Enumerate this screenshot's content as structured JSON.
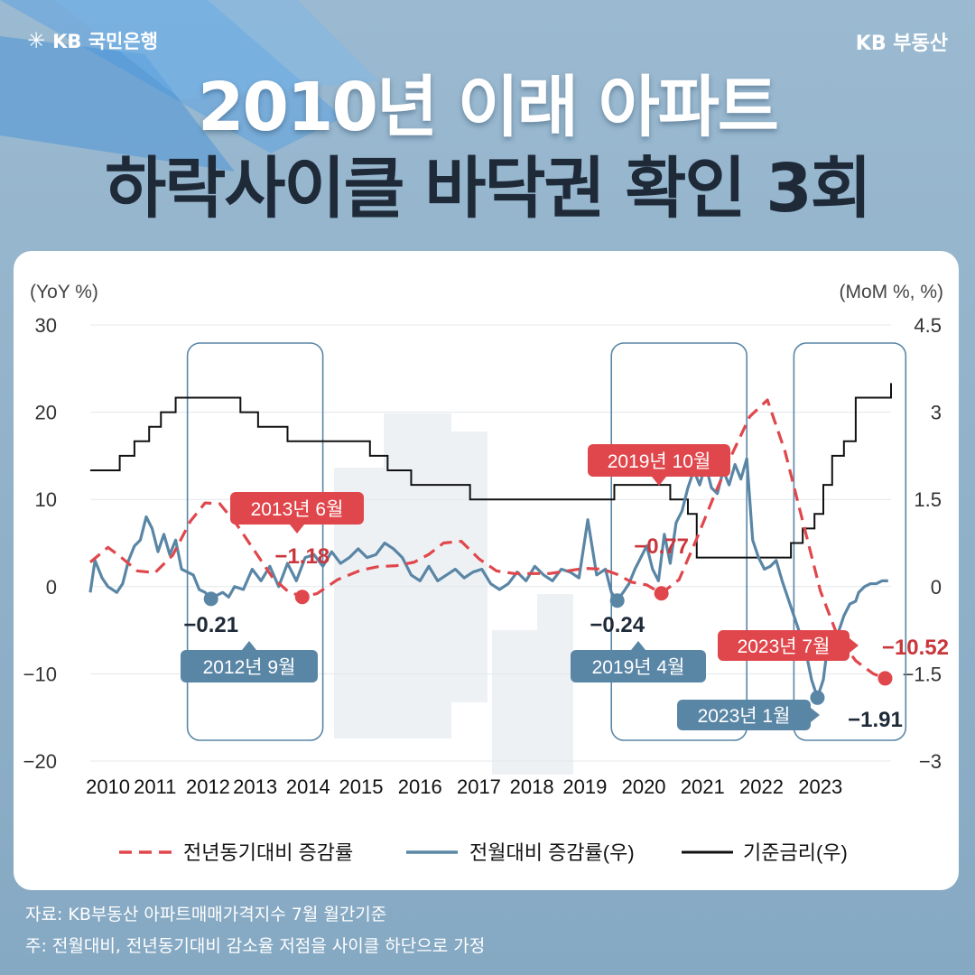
{
  "header": {
    "bank_logo_text": "KB 국민은행",
    "brand_right": "KB 부동산",
    "title_line1": "2010년 이래 아파트",
    "title_line2": "하락사이클 바닥권 확인 3회"
  },
  "footer": {
    "source": "자료: KB부동산 아파트매매가격지수 7월 월간기준",
    "note": "주: 전월대비, 전년동기대비 감소율 저점을 사이클 하단으로 가정"
  },
  "colors": {
    "yoy": "#e0474c",
    "mom": "#5a86a6",
    "rate": "#111111",
    "highlight_box": "#5a86a6"
  },
  "chart_data": {
    "type": "line",
    "left_axis_label": "(YoY %)",
    "right_axis_label": "(MoM %, %)",
    "ylim_left": [
      -20,
      30
    ],
    "ylim_right": [
      -3,
      4.5
    ],
    "yticks_left": [
      "30",
      "20",
      "10",
      "0",
      "−10",
      "−20"
    ],
    "yticks_right": [
      "4.5",
      "3",
      "1.5",
      "0",
      "−1.5",
      "−3"
    ],
    "yticks_left_values": [
      30,
      20,
      10,
      0,
      -10,
      -20
    ],
    "yticks_right_values": [
      4.5,
      3,
      1.5,
      0,
      -1.5,
      -3
    ],
    "xlim": [
      2010.0,
      2023.6
    ],
    "xtick_labels": [
      "2010",
      "2011",
      "2012",
      "2013",
      "2014",
      "2015",
      "2016",
      "2017",
      "2018",
      "2019",
      "2020",
      "2021",
      "2022",
      "2023"
    ],
    "xtick_values": [
      2010.3,
      2011.1,
      2012.0,
      2012.8,
      2013.7,
      2014.6,
      2015.6,
      2016.6,
      2017.5,
      2018.4,
      2019.4,
      2020.4,
      2021.4,
      2022.4
    ],
    "grid": true,
    "legend_position": "bottom",
    "legend": [
      "전년동기대비 증감률",
      "전월대비 증감률(우)",
      "기준금리(우)"
    ],
    "highlight_periods": [
      [
        2011.65,
        2013.95
      ],
      [
        2018.85,
        2021.15
      ],
      [
        2021.95,
        2023.85
      ]
    ],
    "series": [
      {
        "name": "전년동기대비 증감률",
        "axis": "left",
        "style": "dashed",
        "x": [
          2010.0,
          2010.3,
          2010.5,
          2010.8,
          2011.1,
          2011.4,
          2011.7,
          2011.95,
          2012.2,
          2012.5,
          2012.8,
          2013.1,
          2013.35,
          2013.6,
          2013.85,
          2014.2,
          2014.6,
          2014.9,
          2015.2,
          2015.5,
          2015.75,
          2016.0,
          2016.3,
          2016.6,
          2016.9,
          2017.2,
          2017.5,
          2017.8,
          2018.1,
          2018.4,
          2018.7,
          2018.95,
          2019.2,
          2019.45,
          2019.7,
          2020.0,
          2020.3,
          2020.6,
          2020.9,
          2021.2,
          2021.5,
          2021.8,
          2022.1,
          2022.4,
          2022.7,
          2023.0,
          2023.3,
          2023.5
        ],
        "y": [
          2.8,
          4.5,
          3.5,
          1.8,
          1.6,
          3.6,
          7.5,
          9.6,
          9.5,
          7,
          4,
          1,
          -0.5,
          -1.18,
          -0.8,
          0.8,
          1.9,
          2.3,
          2.4,
          2.8,
          3.7,
          5,
          5.2,
          3.2,
          1.8,
          1.5,
          1.5,
          1.5,
          1.8,
          2.1,
          2,
          1.4,
          0.5,
          0.2,
          -0.77,
          0.8,
          5.5,
          10.5,
          15.2,
          19.5,
          21.4,
          15.5,
          7.5,
          -0.5,
          -5.8,
          -8.5,
          -10,
          -10.52
        ]
      },
      {
        "name": "전월대비 증감률(우)",
        "axis": "right",
        "style": "solid",
        "x": [
          2010.0,
          2010.08,
          2010.2,
          2010.3,
          2010.45,
          2010.55,
          2010.65,
          2010.75,
          2010.85,
          2010.95,
          2011.05,
          2011.15,
          2011.25,
          2011.35,
          2011.45,
          2011.55,
          2011.65,
          2011.75,
          2011.85,
          2011.95,
          2012.05,
          2012.15,
          2012.25,
          2012.35,
          2012.45,
          2012.6,
          2012.75,
          2012.9,
          2013.05,
          2013.2,
          2013.35,
          2013.5,
          2013.65,
          2013.8,
          2013.95,
          2014.1,
          2014.25,
          2014.4,
          2014.55,
          2014.7,
          2014.85,
          2015.0,
          2015.15,
          2015.3,
          2015.45,
          2015.6,
          2015.75,
          2015.9,
          2016.05,
          2016.2,
          2016.35,
          2016.5,
          2016.65,
          2016.8,
          2016.95,
          2017.1,
          2017.25,
          2017.4,
          2017.55,
          2017.7,
          2017.85,
          2018.0,
          2018.15,
          2018.3,
          2018.45,
          2018.6,
          2018.75,
          2018.85,
          2018.95,
          2019.05,
          2019.15,
          2019.25,
          2019.35,
          2019.45,
          2019.55,
          2019.65,
          2019.75,
          2019.85,
          2019.95,
          2020.05,
          2020.15,
          2020.25,
          2020.35,
          2020.45,
          2020.55,
          2020.65,
          2020.75,
          2020.85,
          2020.95,
          2021.05,
          2021.15,
          2021.25,
          2021.35,
          2021.45,
          2021.55,
          2021.65,
          2021.75,
          2021.85,
          2021.95,
          2022.05,
          2022.15,
          2022.25,
          2022.35,
          2022.45,
          2022.5,
          2022.6,
          2022.7,
          2022.8,
          2022.9,
          2023.0,
          2023.05,
          2023.15,
          2023.25,
          2023.35,
          2023.45,
          2023.55
        ],
        "y": [
          -0.1,
          0.45,
          0.15,
          0.0,
          -0.1,
          0.05,
          0.45,
          0.7,
          0.8,
          1.2,
          1.0,
          0.6,
          0.9,
          0.55,
          0.8,
          0.3,
          0.25,
          0.2,
          -0.05,
          -0.1,
          -0.21,
          -0.15,
          -0.1,
          -0.18,
          0.0,
          -0.05,
          0.3,
          0.1,
          0.35,
          0.0,
          0.4,
          0.1,
          0.5,
          0.55,
          0.35,
          0.6,
          0.4,
          0.5,
          0.65,
          0.5,
          0.55,
          0.75,
          0.65,
          0.5,
          0.2,
          0.1,
          0.35,
          0.1,
          0.2,
          0.3,
          0.15,
          0.25,
          0.3,
          0.05,
          -0.05,
          0.05,
          0.25,
          0.1,
          0.35,
          0.2,
          0.1,
          0.3,
          0.25,
          0.15,
          1.15,
          0.2,
          0.3,
          -0.1,
          -0.24,
          -0.1,
          0.05,
          0.3,
          0.5,
          0.7,
          0.3,
          0.1,
          0.9,
          0.4,
          1.1,
          1.3,
          1.7,
          2.0,
          1.75,
          2.1,
          1.7,
          1.6,
          2.0,
          1.75,
          2.1,
          1.85,
          2.2,
          0.8,
          0.5,
          0.3,
          0.35,
          0.45,
          0.1,
          -0.2,
          -0.5,
          -0.8,
          -1.1,
          -1.6,
          -1.91,
          -1.6,
          -1.2,
          -1.0,
          -0.8,
          -0.5,
          -0.3,
          -0.25,
          -0.1,
          0.0,
          0.05,
          0.05,
          0.1,
          0.1
        ]
      },
      {
        "name": "기준금리(우)",
        "axis": "right",
        "style": "step",
        "x": [
          2010.0,
          2010.5,
          2010.75,
          2011.0,
          2011.2,
          2011.45,
          2011.6,
          2011.85,
          2012.35,
          2012.55,
          2012.85,
          2013.35,
          2014.55,
          2014.75,
          2015.05,
          2015.45,
          2016.45,
          2017.9,
          2018.9,
          2019.5,
          2019.85,
          2020.15,
          2020.3,
          2021.6,
          2021.9,
          2022.1,
          2022.3,
          2022.45,
          2022.6,
          2022.8,
          2023.0,
          2023.6
        ],
        "y": [
          2.0,
          2.25,
          2.5,
          2.75,
          3.0,
          3.25,
          3.25,
          3.25,
          3.25,
          3.0,
          2.75,
          2.5,
          2.5,
          2.25,
          2.0,
          1.75,
          1.5,
          1.5,
          1.75,
          1.75,
          1.5,
          1.25,
          0.5,
          0.5,
          0.75,
          1.0,
          1.25,
          1.75,
          2.25,
          2.5,
          3.25,
          3.5
        ]
      }
    ],
    "annotations": {
      "value_labels": [
        {
          "text": "−0.21",
          "color": "#1f2a38"
        },
        {
          "text": "−1.18",
          "color": "#c9363c"
        },
        {
          "text": "−0.24",
          "color": "#1f2a38"
        },
        {
          "text": "−0.77",
          "color": "#c9363c"
        },
        {
          "text": "−1.91",
          "color": "#1f2a38"
        },
        {
          "text": "−10.52",
          "color": "#c9363c"
        }
      ],
      "callouts": [
        {
          "text": "2013년 6월",
          "color": "#e0474c"
        },
        {
          "text": "2012년 9월",
          "color": "#5a86a6"
        },
        {
          "text": "2019년 10월",
          "color": "#e0474c"
        },
        {
          "text": "2019년 4월",
          "color": "#5a86a6"
        },
        {
          "text": "2023년 7월",
          "color": "#e0474c"
        },
        {
          "text": "2023년 1월",
          "color": "#5a86a6"
        }
      ]
    }
  }
}
